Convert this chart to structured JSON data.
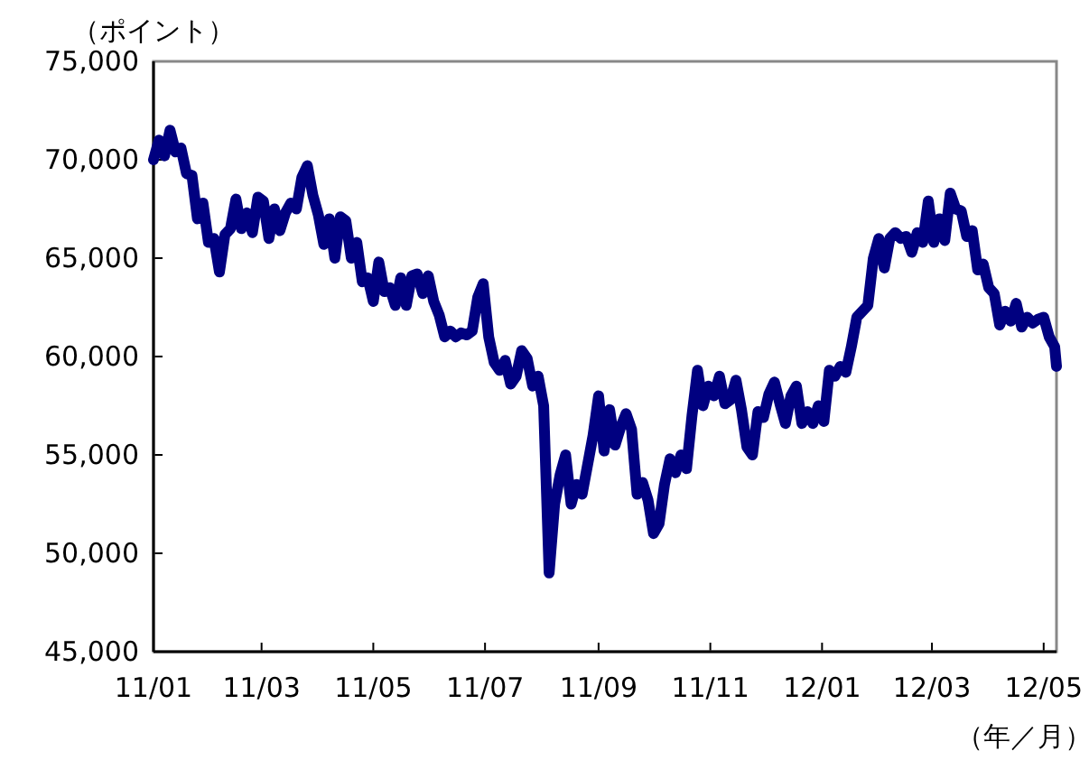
{
  "chart_data": {
    "type": "line",
    "ylabel": "（ポイント）",
    "xlabel": "（年／月）",
    "marker": "none",
    "line_style": "solid",
    "xlim": [
      "2011-01-01",
      "2012-05-08"
    ],
    "xticks": [
      {
        "value": "2011-01-01",
        "label": "11/01"
      },
      {
        "value": "2011-03-01",
        "label": "11/03"
      },
      {
        "value": "2011-05-01",
        "label": "11/05"
      },
      {
        "value": "2011-07-01",
        "label": "11/07"
      },
      {
        "value": "2011-09-01",
        "label": "11/09"
      },
      {
        "value": "2011-11-01",
        "label": "11/11"
      },
      {
        "value": "2012-01-01",
        "label": "12/01"
      },
      {
        "value": "2012-03-01",
        "label": "12/03"
      },
      {
        "value": "2012-05-01",
        "label": "12/05"
      }
    ],
    "ylim": [
      45000,
      75000
    ],
    "yticks": [
      {
        "value": 45000,
        "label": "45,000"
      },
      {
        "value": 50000,
        "label": "50,000"
      },
      {
        "value": 55000,
        "label": "55,000"
      },
      {
        "value": 60000,
        "label": "60,000"
      },
      {
        "value": 65000,
        "label": "65,000"
      },
      {
        "value": 70000,
        "label": "70,000"
      },
      {
        "value": 75000,
        "label": "75,000"
      }
    ],
    "x": [
      "2011-01-01",
      "2011-01-04",
      "2011-01-07",
      "2011-01-10",
      "2011-01-13",
      "2011-01-16",
      "2011-01-19",
      "2011-01-22",
      "2011-01-25",
      "2011-01-28",
      "2011-01-31",
      "2011-02-03",
      "2011-02-06",
      "2011-02-09",
      "2011-02-12",
      "2011-02-15",
      "2011-02-18",
      "2011-02-21",
      "2011-02-24",
      "2011-02-27",
      "2011-03-02",
      "2011-03-05",
      "2011-03-08",
      "2011-03-11",
      "2011-03-14",
      "2011-03-17",
      "2011-03-20",
      "2011-03-23",
      "2011-03-26",
      "2011-03-29",
      "2011-04-01",
      "2011-04-04",
      "2011-04-07",
      "2011-04-10",
      "2011-04-13",
      "2011-04-16",
      "2011-04-19",
      "2011-04-22",
      "2011-04-25",
      "2011-04-28",
      "2011-05-01",
      "2011-05-04",
      "2011-05-07",
      "2011-05-10",
      "2011-05-13",
      "2011-05-16",
      "2011-05-19",
      "2011-05-22",
      "2011-05-25",
      "2011-05-28",
      "2011-05-31",
      "2011-06-03",
      "2011-06-06",
      "2011-06-09",
      "2011-06-12",
      "2011-06-15",
      "2011-06-18",
      "2011-06-21",
      "2011-06-24",
      "2011-06-27",
      "2011-06-30",
      "2011-07-03",
      "2011-07-06",
      "2011-07-09",
      "2011-07-12",
      "2011-07-15",
      "2011-07-18",
      "2011-07-21",
      "2011-07-24",
      "2011-07-27",
      "2011-07-30",
      "2011-08-02",
      "2011-08-05",
      "2011-08-08",
      "2011-08-11",
      "2011-08-14",
      "2011-08-17",
      "2011-08-20",
      "2011-08-23",
      "2011-08-26",
      "2011-08-29",
      "2011-09-01",
      "2011-09-04",
      "2011-09-07",
      "2011-09-10",
      "2011-09-13",
      "2011-09-16",
      "2011-09-19",
      "2011-09-22",
      "2011-09-25",
      "2011-09-28",
      "2011-10-01",
      "2011-10-04",
      "2011-10-07",
      "2011-10-10",
      "2011-10-13",
      "2011-10-16",
      "2011-10-19",
      "2011-10-22",
      "2011-10-25",
      "2011-10-28",
      "2011-10-31",
      "2011-11-03",
      "2011-11-06",
      "2011-11-09",
      "2011-11-12",
      "2011-11-15",
      "2011-11-18",
      "2011-11-21",
      "2011-11-24",
      "2011-11-27",
      "2011-11-30",
      "2011-12-03",
      "2011-12-06",
      "2011-12-09",
      "2011-12-12",
      "2011-12-15",
      "2011-12-18",
      "2011-12-21",
      "2011-12-24",
      "2011-12-27",
      "2011-12-30",
      "2012-01-02",
      "2012-01-05",
      "2012-01-08",
      "2012-01-11",
      "2012-01-14",
      "2012-01-17",
      "2012-01-20",
      "2012-01-23",
      "2012-01-26",
      "2012-01-29",
      "2012-02-01",
      "2012-02-04",
      "2012-02-07",
      "2012-02-10",
      "2012-02-13",
      "2012-02-16",
      "2012-02-19",
      "2012-02-22",
      "2012-02-25",
      "2012-02-28",
      "2012-03-02",
      "2012-03-05",
      "2012-03-08",
      "2012-03-11",
      "2012-03-14",
      "2012-03-17",
      "2012-03-20",
      "2012-03-23",
      "2012-03-26",
      "2012-03-29",
      "2012-04-01",
      "2012-04-04",
      "2012-04-07",
      "2012-04-10",
      "2012-04-13",
      "2012-04-16",
      "2012-04-19",
      "2012-04-22",
      "2012-04-25",
      "2012-04-28",
      "2012-05-01",
      "2012-05-04",
      "2012-05-07",
      "2012-05-08"
    ],
    "series": [
      {
        "color": "#000080",
        "values": [
          70000,
          71000,
          70200,
          71500,
          70400,
          70600,
          69300,
          69200,
          67000,
          67800,
          65800,
          66000,
          64300,
          66200,
          66500,
          68000,
          66500,
          67300,
          66300,
          68100,
          67900,
          66000,
          67500,
          66400,
          67300,
          67800,
          67500,
          69100,
          69700,
          68200,
          67200,
          65700,
          67000,
          65000,
          67100,
          66900,
          65000,
          65800,
          63800,
          64000,
          62800,
          64800,
          63300,
          63500,
          62600,
          64000,
          62600,
          64100,
          64200,
          63200,
          64100,
          62800,
          62100,
          61000,
          61300,
          61000,
          61200,
          61100,
          61300,
          63000,
          63700,
          61000,
          59700,
          59300,
          59800,
          58600,
          59000,
          60300,
          59900,
          58500,
          59000,
          57500,
          49000,
          52500,
          54000,
          55000,
          52500,
          53500,
          53000,
          54500,
          56000,
          58000,
          55200,
          57300,
          55500,
          56400,
          57100,
          56300,
          53000,
          53600,
          52700,
          51000,
          51500,
          53500,
          54800,
          54100,
          55000,
          54300,
          57000,
          59300,
          57500,
          58500,
          58000,
          59000,
          57600,
          57800,
          58800,
          57300,
          55400,
          55000,
          57200,
          56900,
          58100,
          58700,
          57600,
          56600,
          58000,
          58500,
          56600,
          57200,
          56600,
          57500,
          56700,
          59300,
          59000,
          59500,
          59200,
          60500,
          62000,
          62300,
          62600,
          65000,
          66000,
          64500,
          66000,
          66300,
          66000,
          66100,
          65300,
          66300,
          65800,
          67900,
          65800,
          67000,
          65900,
          68300,
          67500,
          67400,
          66100,
          66400,
          64400,
          64700,
          63500,
          63200,
          61600,
          62300,
          61800,
          62700,
          61500,
          62000,
          61700,
          61900,
          62000,
          61000,
          60500,
          59500
        ]
      }
    ]
  }
}
